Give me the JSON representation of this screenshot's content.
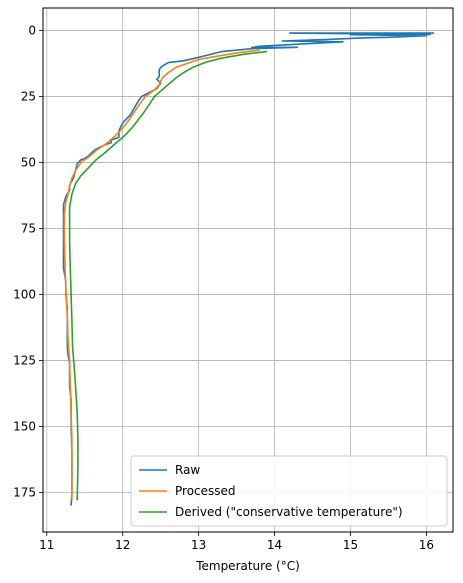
{
  "chart_data": {
    "type": "line",
    "xlabel": "Temperature (°C)",
    "ylabel": "",
    "xlim": [
      10.95,
      16.35
    ],
    "ylim": [
      190,
      -8.5
    ],
    "y_inverted": true,
    "grid": true,
    "legend_position": "lower right",
    "x_ticks": [
      11,
      12,
      13,
      14,
      15,
      16
    ],
    "y_ticks": [
      0,
      25,
      50,
      75,
      100,
      125,
      150,
      175
    ],
    "series": [
      {
        "name": "Raw",
        "color": "#1f77b4",
        "points": [
          [
            16.1,
            1.0
          ],
          [
            14.2,
            1.0
          ],
          [
            16.05,
            1.5
          ],
          [
            15.0,
            1.6
          ],
          [
            16.0,
            2.0
          ],
          [
            15.5,
            2.6
          ],
          [
            15.2,
            2.8
          ],
          [
            14.7,
            3.4
          ],
          [
            14.1,
            4.0
          ],
          [
            14.9,
            4.3
          ],
          [
            14.3,
            5.2
          ],
          [
            13.8,
            6.0
          ],
          [
            13.7,
            6.5
          ],
          [
            14.3,
            6.4
          ],
          [
            13.7,
            6.9
          ],
          [
            13.3,
            8.0
          ],
          [
            13.1,
            9.5
          ],
          [
            12.95,
            10.5
          ],
          [
            12.8,
            11.5
          ],
          [
            12.6,
            12.2
          ],
          [
            12.55,
            13.0
          ],
          [
            12.5,
            14.0
          ],
          [
            12.48,
            15.0
          ],
          [
            12.48,
            16.5
          ],
          [
            12.48,
            17.5
          ],
          [
            12.45,
            18.5
          ],
          [
            12.5,
            20.0
          ],
          [
            12.45,
            22.0
          ],
          [
            12.35,
            23.5
          ],
          [
            12.25,
            25.0
          ],
          [
            12.2,
            27.0
          ],
          [
            12.15,
            29.5
          ],
          [
            12.1,
            32.0
          ],
          [
            12.0,
            35.0
          ],
          [
            11.95,
            38.0
          ],
          [
            11.95,
            40.5
          ],
          [
            11.85,
            41.5
          ],
          [
            11.85,
            42.5
          ],
          [
            11.75,
            43.5
          ],
          [
            11.65,
            45.0
          ],
          [
            11.6,
            46.0
          ],
          [
            11.55,
            47.5
          ],
          [
            11.5,
            48.5
          ],
          [
            11.45,
            49.0
          ],
          [
            11.4,
            50.5
          ],
          [
            11.38,
            53.0
          ],
          [
            11.35,
            56.0
          ],
          [
            11.3,
            58.5
          ],
          [
            11.3,
            60.5
          ],
          [
            11.25,
            63.0
          ],
          [
            11.22,
            66.0
          ],
          [
            11.22,
            70.0
          ],
          [
            11.22,
            78.0
          ],
          [
            11.22,
            85.0
          ],
          [
            11.22,
            90.0
          ],
          [
            11.25,
            95.0
          ],
          [
            11.25,
            100.0
          ],
          [
            11.27,
            105.0
          ],
          [
            11.27,
            110.0
          ],
          [
            11.27,
            115.0
          ],
          [
            11.27,
            120.0
          ],
          [
            11.28,
            123.0
          ],
          [
            11.3,
            126.0
          ],
          [
            11.3,
            130.0
          ],
          [
            11.3,
            135.0
          ],
          [
            11.32,
            140.0
          ],
          [
            11.32,
            150.0
          ],
          [
            11.33,
            160.0
          ],
          [
            11.33,
            170.0
          ],
          [
            11.33,
            175.0
          ],
          [
            11.32,
            180.0
          ]
        ]
      },
      {
        "name": "Processed",
        "color": "#ff7f0e",
        "points": [
          [
            13.8,
            7.5
          ],
          [
            13.5,
            8.5
          ],
          [
            13.2,
            10.0
          ],
          [
            13.0,
            11.0
          ],
          [
            12.85,
            12.5
          ],
          [
            12.7,
            14.0
          ],
          [
            12.6,
            16.0
          ],
          [
            12.52,
            18.0
          ],
          [
            12.48,
            20.5
          ],
          [
            12.42,
            22.5
          ],
          [
            12.3,
            25.0
          ],
          [
            12.22,
            28.0
          ],
          [
            12.15,
            31.0
          ],
          [
            12.08,
            34.0
          ],
          [
            12.0,
            37.0
          ],
          [
            11.9,
            40.0
          ],
          [
            11.78,
            43.0
          ],
          [
            11.65,
            45.5
          ],
          [
            11.55,
            48.0
          ],
          [
            11.45,
            50.0
          ],
          [
            11.38,
            53.0
          ],
          [
            11.33,
            56.0
          ],
          [
            11.3,
            59.0
          ],
          [
            11.28,
            62.0
          ],
          [
            11.25,
            65.0
          ],
          [
            11.23,
            70.0
          ],
          [
            11.23,
            78.0
          ],
          [
            11.24,
            88.0
          ],
          [
            11.25,
            98.0
          ],
          [
            11.27,
            108.0
          ],
          [
            11.28,
            118.0
          ],
          [
            11.3,
            125.0
          ],
          [
            11.31,
            135.0
          ],
          [
            11.32,
            145.0
          ],
          [
            11.33,
            155.0
          ],
          [
            11.33,
            165.0
          ],
          [
            11.33,
            178.0
          ]
        ]
      },
      {
        "name": "Derived (\"conservative temperature\")",
        "color": "#2ca02c",
        "points": [
          [
            13.9,
            8.0
          ],
          [
            13.6,
            9.0
          ],
          [
            13.3,
            10.5
          ],
          [
            13.1,
            12.0
          ],
          [
            12.92,
            14.0
          ],
          [
            12.8,
            16.0
          ],
          [
            12.7,
            18.0
          ],
          [
            12.62,
            20.0
          ],
          [
            12.52,
            22.5
          ],
          [
            12.42,
            25.0
          ],
          [
            12.35,
            28.0
          ],
          [
            12.28,
            31.0
          ],
          [
            12.2,
            34.0
          ],
          [
            12.12,
            37.0
          ],
          [
            12.02,
            40.0
          ],
          [
            11.9,
            43.0
          ],
          [
            11.78,
            46.0
          ],
          [
            11.65,
            49.0
          ],
          [
            11.55,
            52.0
          ],
          [
            11.45,
            55.0
          ],
          [
            11.38,
            58.0
          ],
          [
            11.33,
            62.0
          ],
          [
            11.3,
            67.0
          ],
          [
            11.3,
            73.0
          ],
          [
            11.3,
            80.0
          ],
          [
            11.31,
            90.0
          ],
          [
            11.32,
            100.0
          ],
          [
            11.33,
            110.0
          ],
          [
            11.34,
            120.0
          ],
          [
            11.36,
            127.0
          ],
          [
            11.38,
            135.0
          ],
          [
            11.4,
            145.0
          ],
          [
            11.41,
            155.0
          ],
          [
            11.41,
            165.0
          ],
          [
            11.4,
            178.0
          ]
        ]
      }
    ]
  }
}
